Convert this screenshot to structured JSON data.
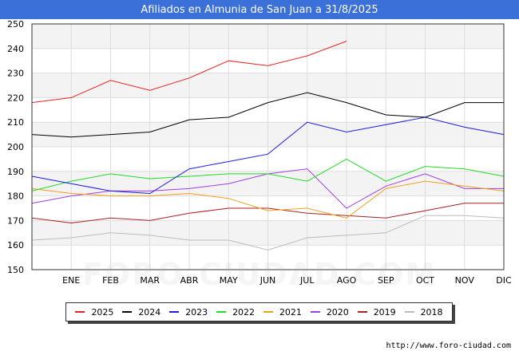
{
  "source": "http://www.foro-ciudad.com",
  "watermark": "FORO-CIUDAD.COM",
  "chart_data": {
    "type": "line",
    "title": "Afiliados en Almunia de San Juan a 31/8/2025",
    "categories": [
      "",
      "ENE",
      "FEB",
      "MAR",
      "ABR",
      "MAY",
      "JUN",
      "JUL",
      "AGO",
      "SEP",
      "OCT",
      "NOV",
      "DIC"
    ],
    "ylim": [
      150,
      250
    ],
    "yticks": [
      150,
      160,
      170,
      180,
      190,
      200,
      210,
      220,
      230,
      240,
      250
    ],
    "grid": true,
    "legend_position": "bottom",
    "series": [
      {
        "name": "2025",
        "color": "#e8231f",
        "values": [
          218,
          220,
          227,
          223,
          228,
          235,
          233,
          237,
          243,
          null,
          null,
          null,
          null
        ]
      },
      {
        "name": "2024",
        "color": "#000000",
        "values": [
          205,
          204,
          205,
          206,
          211,
          212,
          218,
          222,
          218,
          213,
          212,
          218,
          218
        ]
      },
      {
        "name": "2023",
        "color": "#1a1ae0",
        "values": [
          188,
          185,
          182,
          181,
          191,
          194,
          197,
          210,
          206,
          209,
          212,
          208,
          205
        ]
      },
      {
        "name": "2022",
        "color": "#22dd22",
        "values": [
          182,
          186,
          189,
          187,
          188,
          189,
          189,
          186,
          195,
          186,
          192,
          191,
          188
        ]
      },
      {
        "name": "2021",
        "color": "#f0a020",
        "values": [
          183,
          181,
          180,
          180,
          181,
          179,
          174,
          175,
          171,
          183,
          186,
          184,
          182
        ]
      },
      {
        "name": "2020",
        "color": "#a040e0",
        "values": [
          177,
          180,
          182,
          182,
          183,
          185,
          189,
          191,
          175,
          184,
          189,
          183,
          183
        ]
      },
      {
        "name": "2019",
        "color": "#a82020",
        "values": [
          171,
          169,
          171,
          170,
          173,
          175,
          175,
          173,
          172,
          171,
          174,
          177,
          177
        ]
      },
      {
        "name": "2018",
        "color": "#bbbbbb",
        "values": [
          162,
          163,
          165,
          164,
          162,
          162,
          158,
          163,
          164,
          165,
          172,
          172,
          171
        ]
      }
    ]
  }
}
